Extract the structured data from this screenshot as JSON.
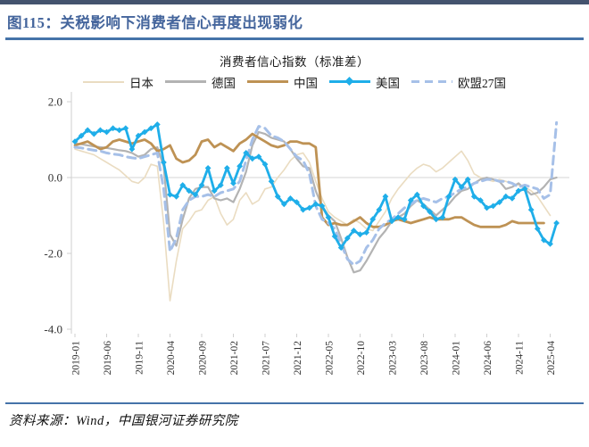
{
  "figure": {
    "title": "图115：关税影响下消费者信心再度出现弱化",
    "source": "资料来源：Wind，中国银河证券研究院",
    "accent_color": "#44659C",
    "rule_color": "#4573A9",
    "top_bar_color": "#44536E"
  },
  "chart_data": {
    "type": "line",
    "title": "消费者信心指数（标准差）",
    "x_start": "2019-01",
    "x_end": "2025-05",
    "x_frequency": "monthly",
    "ylim": [
      -4.3,
      2.3
    ],
    "grid": "zero-line-only",
    "legend_position": "top",
    "y_ticks": [
      {
        "label": "2.0",
        "value": 2
      },
      {
        "label": "0.0",
        "value": 0
      },
      {
        "label": "-2.0",
        "value": -2
      },
      {
        "label": "-4.0",
        "value": -4
      }
    ],
    "x_ticks": [
      {
        "label": "2019-01",
        "m": 0
      },
      {
        "label": "2019-06",
        "m": 5
      },
      {
        "label": "2019-11",
        "m": 10
      },
      {
        "label": "2020-04",
        "m": 15
      },
      {
        "label": "2020-09",
        "m": 20
      },
      {
        "label": "2021-02",
        "m": 25
      },
      {
        "label": "2021-07",
        "m": 30
      },
      {
        "label": "2021-12",
        "m": 35
      },
      {
        "label": "2022-05",
        "m": 40
      },
      {
        "label": "2022-10",
        "m": 45
      },
      {
        "label": "2023-03",
        "m": 50
      },
      {
        "label": "2023-08",
        "m": 55
      },
      {
        "label": "2024-01",
        "m": 60
      },
      {
        "label": "2024-06",
        "m": 65
      },
      {
        "label": "2024-11",
        "m": 70
      },
      {
        "label": "2025-04",
        "m": 75
      }
    ],
    "series": [
      {
        "name": "日本",
        "key": "japan",
        "color": "#EADCC1",
        "style": "solid",
        "width": 1.6,
        "marker": "none",
        "values": [
          0.75,
          0.7,
          0.65,
          0.6,
          0.5,
          0.4,
          0.3,
          0.2,
          0.05,
          -0.1,
          -0.15,
          0,
          0.35,
          0.3,
          -1.2,
          -3.25,
          -2.2,
          -1.35,
          -1.15,
          -0.9,
          -0.85,
          -0.6,
          -0.5,
          -0.95,
          -1.25,
          -1.1,
          -0.6,
          -0.4,
          -0.7,
          -0.6,
          -0.3,
          -0.25,
          0,
          0.2,
          0.45,
          0.6,
          0.65,
          0.4,
          -0.1,
          -0.55,
          -0.9,
          -1.05,
          -1.15,
          -1.25,
          -1.1,
          -1.2,
          -1.35,
          -1.4,
          -1.15,
          -0.9,
          -0.55,
          -0.3,
          -0.1,
          0.1,
          0.25,
          0.35,
          0.3,
          0.15,
          0.25,
          0.4,
          0.55,
          0.7,
          0.45,
          0.1,
          0,
          -0.05,
          -0.1,
          -0.05,
          -0.1,
          -0.15,
          -0.2,
          -0.25,
          -0.35,
          -0.5,
          -0.75,
          -1.0,
          null
        ]
      },
      {
        "name": "德国",
        "key": "germany",
        "color": "#B3B3B3",
        "style": "solid",
        "width": 2.2,
        "marker": "none",
        "values": [
          0.9,
          0.88,
          0.85,
          0.82,
          0.8,
          0.78,
          0.75,
          0.72,
          0.7,
          0.65,
          0.55,
          0.6,
          0.75,
          0.8,
          0.3,
          -1.5,
          -1.8,
          -1.1,
          -0.55,
          -0.3,
          -0.25,
          -0.25,
          -0.55,
          -0.6,
          -0.55,
          -0.65,
          -0.3,
          0.15,
          0.85,
          1.2,
          1.15,
          1.05,
          1.0,
          0.95,
          0.75,
          0.5,
          0.3,
          0.25,
          -0.35,
          -0.75,
          -1.0,
          -1.15,
          -1.6,
          -2.1,
          -2.5,
          -2.45,
          -2.2,
          -1.9,
          -1.6,
          -1.4,
          -1.15,
          -1.05,
          -0.95,
          -0.75,
          -0.6,
          -0.7,
          -0.85,
          -1.0,
          -0.85,
          -0.7,
          -0.5,
          -0.35,
          -0.3,
          -0.15,
          -0.05,
          0,
          -0.05,
          -0.1,
          -0.3,
          -0.25,
          -0.15,
          -0.3,
          -0.45,
          -0.4,
          -0.25,
          -0.05,
          0
        ]
      },
      {
        "name": "中国",
        "key": "china",
        "color": "#BE9254",
        "style": "solid",
        "width": 2.8,
        "marker": "none",
        "values": [
          0.85,
          0.9,
          0.95,
          0.85,
          0.75,
          0.8,
          0.95,
          1.0,
          0.95,
          0.9,
          0.95,
          1.0,
          0.9,
          0.7,
          0.75,
          0.85,
          0.5,
          0.4,
          0.45,
          0.6,
          0.95,
          1.0,
          0.8,
          0.9,
          0.8,
          0.7,
          0.9,
          1.0,
          1.15,
          1.05,
          0.95,
          0.85,
          0.8,
          0.85,
          0.95,
          0.95,
          0.9,
          0.9,
          0.8,
          -1.05,
          -1.25,
          -1.2,
          -1.25,
          -1.25,
          -1.15,
          -1.05,
          -1.2,
          -1.3,
          -1.3,
          -1.25,
          -1.15,
          -1.1,
          -1.15,
          -1.2,
          -1.15,
          -1.1,
          -1.05,
          -1.1,
          -1.1,
          -1.1,
          -1.05,
          -1.05,
          -1.15,
          -1.25,
          -1.3,
          -1.3,
          -1.3,
          -1.3,
          -1.25,
          -1.15,
          -1.2,
          -1.2,
          -1.2,
          -1.2,
          -1.2,
          null,
          null
        ]
      },
      {
        "name": "美国",
        "key": "us",
        "color": "#1FAEE9",
        "style": "solid",
        "width": 2.8,
        "marker": "diamond",
        "values": [
          0.95,
          1.1,
          1.25,
          1.15,
          1.25,
          1.2,
          1.3,
          1.25,
          1.3,
          0.75,
          1.1,
          1.2,
          1.3,
          1.4,
          0.4,
          -0.45,
          -0.5,
          -0.2,
          -0.35,
          -0.45,
          -0.2,
          0.25,
          -0.35,
          -0.2,
          0.25,
          -0.15,
          0.3,
          0.65,
          0.5,
          0.55,
          0.35,
          -0.1,
          -0.5,
          -0.7,
          -0.55,
          -0.65,
          -0.85,
          -0.8,
          -0.7,
          -0.75,
          -1.05,
          -1.55,
          -1.85,
          -1.6,
          -1.4,
          -1.5,
          -1.45,
          -1.1,
          -0.85,
          -0.5,
          -1.15,
          -1.05,
          -1.1,
          -0.6,
          -0.45,
          -0.75,
          -0.9,
          -1.1,
          -1.05,
          -0.5,
          -0.05,
          -0.25,
          -0.05,
          -0.5,
          -0.6,
          -0.8,
          -0.75,
          -0.65,
          -0.5,
          -0.55,
          -0.35,
          -0.3,
          -0.85,
          -1.35,
          -1.65,
          -1.75,
          -1.2
        ]
      },
      {
        "name": "欧盟27国",
        "key": "eu27",
        "color": "#A6C0E8",
        "style": "dashed",
        "width": 3,
        "marker": "none",
        "values": [
          0.8,
          0.78,
          0.75,
          0.72,
          0.7,
          0.65,
          0.62,
          0.6,
          0.55,
          0.52,
          0.5,
          0.55,
          0.6,
          0.65,
          -0.3,
          -1.95,
          -1.6,
          -0.85,
          -0.6,
          -0.5,
          -0.5,
          -0.45,
          -0.5,
          -0.4,
          -0.35,
          -0.3,
          -0.1,
          0.45,
          1.0,
          1.35,
          1.3,
          1.1,
          1.05,
          0.95,
          0.75,
          0.55,
          0.45,
          0.1,
          -0.75,
          -1.1,
          -1.2,
          -1.35,
          -1.75,
          -2.15,
          -2.3,
          -2.2,
          -1.85,
          -1.65,
          -1.35,
          -1.2,
          -1.1,
          -0.95,
          -0.8,
          -0.7,
          -0.6,
          -0.55,
          -0.6,
          -0.65,
          -0.55,
          -0.5,
          -0.4,
          -0.3,
          -0.25,
          -0.15,
          -0.1,
          -0.05,
          -0.05,
          -0.1,
          -0.1,
          -0.15,
          -0.25,
          -0.2,
          -0.25,
          -0.3,
          -0.55,
          -0.45,
          1.45
        ]
      }
    ]
  }
}
